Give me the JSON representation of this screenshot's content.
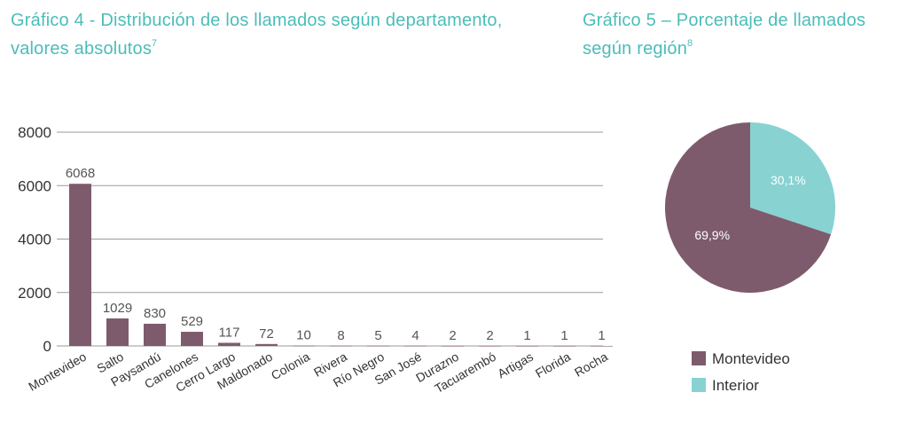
{
  "titles": {
    "chart4_main": "Gráfico 4 - Distribución de los llamados según departamento, valores absolutos",
    "chart4_note": "7",
    "chart5_main": "Gráfico 5 – Porcentaje de llamados según región",
    "chart5_note": "8"
  },
  "chart_data": [
    {
      "type": "bar",
      "title": "Gráfico 4 - Distribución de los llamados según departamento, valores absolutos",
      "categories": [
        "Montevideo",
        "Salto",
        "Paysandú",
        "Canelones",
        "Cerro Largo",
        "Maldonado",
        "Colonia",
        "Rivera",
        "Río Negro",
        "San José",
        "Durazno",
        "Tacuarembó",
        "Artigas",
        "Florida",
        "Rocha"
      ],
      "values": [
        6068,
        1029,
        830,
        529,
        117,
        72,
        10,
        8,
        5,
        4,
        2,
        2,
        1,
        1,
        1
      ],
      "yticks": [
        "0",
        "2000",
        "4000",
        "6000",
        "8000"
      ],
      "ylim": [
        0,
        8000
      ],
      "grid": true,
      "color": "#7d5b6d"
    },
    {
      "type": "pie",
      "title": "Gráfico 5 – Porcentaje de llamados según región",
      "slices": [
        {
          "label": "Montevideo",
          "value": 69.9,
          "text": "69,9%",
          "color": "#7d5b6d"
        },
        {
          "label": "Interior",
          "value": 30.1,
          "text": "30,1%",
          "color": "#88d2d2"
        }
      ],
      "legend": "bottom"
    }
  ]
}
